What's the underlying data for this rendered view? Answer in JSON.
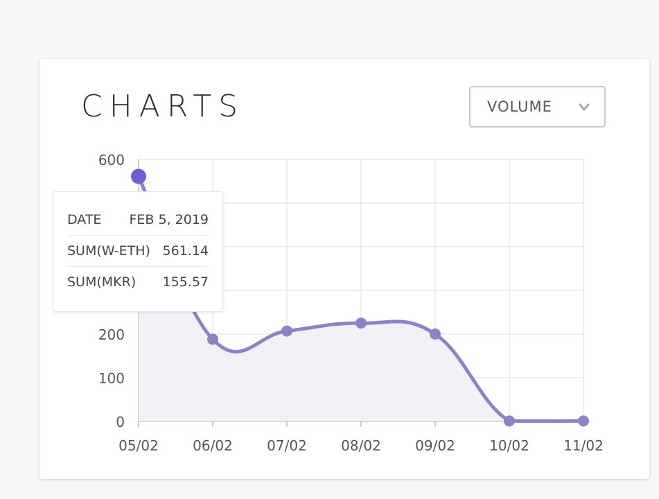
{
  "header": {
    "title": "CHARTS",
    "metric_select": {
      "selected": "VOLUME",
      "icon": "chevron-down-icon"
    }
  },
  "tooltip": {
    "rows": [
      {
        "label": "DATE",
        "value": "FEB 5, 2019"
      },
      {
        "label": "SUM(W-ETH)",
        "value": "561.14"
      },
      {
        "label": "SUM(MKR)",
        "value": "155.57"
      }
    ]
  },
  "colors": {
    "line": "#8b82c7",
    "area": "#f2f1f8",
    "highlight_point": "#6c5fd1",
    "grid": "#dcdcdc",
    "axis_text": "#555555"
  },
  "chart_data": {
    "type": "area",
    "title": "",
    "xlabel": "",
    "ylabel": "",
    "ylim": [
      0,
      600
    ],
    "yticks": [
      0,
      100,
      200,
      300,
      400,
      500,
      600
    ],
    "yticks_labeled": [
      "0",
      "100",
      "200",
      "",
      "",
      "",
      "600"
    ],
    "categories": [
      "05/02",
      "06/02",
      "07/02",
      "08/02",
      "09/02",
      "10/02",
      "11/02"
    ],
    "series": [
      {
        "values": [
          561.14,
          188,
          207,
          225,
          200,
          1,
          1
        ]
      }
    ],
    "highlight_index": 0,
    "grid": true,
    "smooth": true
  }
}
